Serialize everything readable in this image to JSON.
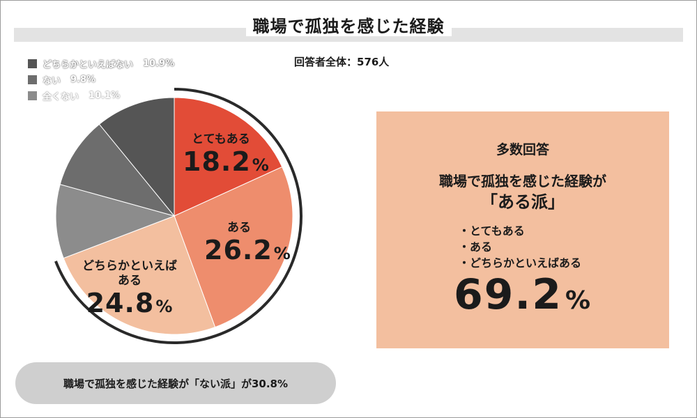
{
  "title": "職場で孤独を感じた経験",
  "respondents": "回答者全体：576人",
  "legend": [
    {
      "label": "どちらかといえばない",
      "value": "10.9%",
      "color": "#555555"
    },
    {
      "label": "ない",
      "value": "9.8%",
      "color": "#6d6d6d"
    },
    {
      "label": "全くない",
      "value": "10.1%",
      "color": "#8c8c8c"
    }
  ],
  "chart_data": {
    "type": "pie",
    "title": "職場で孤独を感じた経験",
    "slices": [
      {
        "label": "とてもある",
        "value": 18.2,
        "color": "#e24c37"
      },
      {
        "label": "ある",
        "value": 26.2,
        "color": "#ee8d6d"
      },
      {
        "label": "どちらかといえばある",
        "value": 24.8,
        "color": "#f3bf9f"
      },
      {
        "label": "全くない",
        "value": 10.1,
        "color": "#8c8c8c"
      },
      {
        "label": "ない",
        "value": 9.8,
        "color": "#6d6d6d"
      },
      {
        "label": "どちらかといえばない",
        "value": 10.9,
        "color": "#555555"
      }
    ],
    "slice_labels": [
      {
        "name": "とてもある",
        "pct": "18.2",
        "unit": "%"
      },
      {
        "name": "ある",
        "pct": "26.2",
        "unit": "%"
      },
      {
        "name": "どちらかといえば",
        "name2": "ある",
        "pct": "24.8",
        "unit": "%"
      }
    ]
  },
  "summary": {
    "heading": "多数回答",
    "line1": "職場で孤独を感じた経験が",
    "line2": "「ある派」",
    "bullets": [
      "・とてもある",
      "・ある",
      "・どちらかといえばある"
    ],
    "total": "69.2",
    "unit": "%"
  },
  "footer": "職場で孤独を感じた経験が「ない派」が30.8%"
}
